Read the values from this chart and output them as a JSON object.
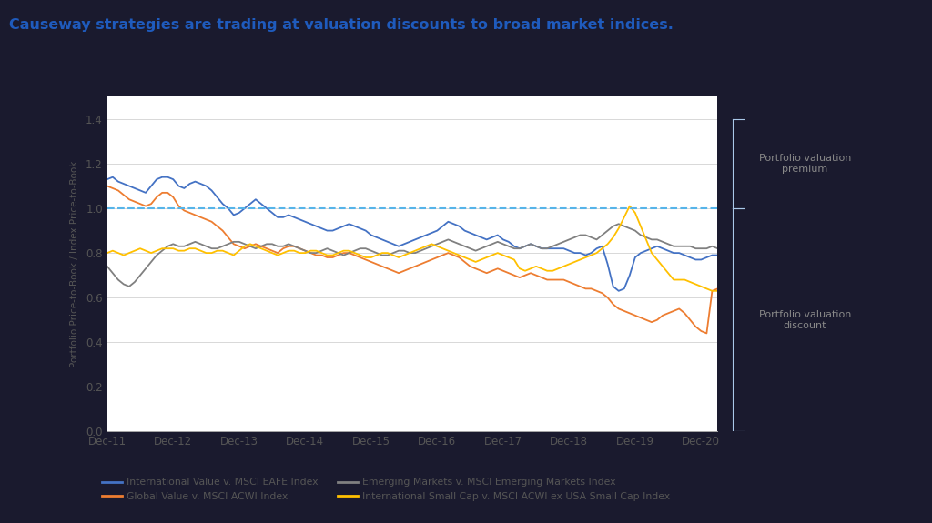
{
  "title": "Causeway strategies are trading at valuation discounts to broad market indices.",
  "title_color": "#1f5bbd",
  "title_bar_color": "#1a1a2e",
  "ylabel": "Portfolio Price-to-Book / Index Price-to-Book",
  "background_color": "#ffffff",
  "chart_bg": "#ffffff",
  "outer_bg": "#1a1a2e",
  "ylim": [
    0,
    1.5
  ],
  "yticks": [
    0,
    0.2,
    0.4,
    0.6,
    0.8,
    1.0,
    1.2,
    1.4
  ],
  "xtick_labels": [
    "Dec-11",
    "Dec-12",
    "Dec-13",
    "Dec-14",
    "Dec-15",
    "Dec-16",
    "Dec-17",
    "Dec-18",
    "Dec-19",
    "Dec-20"
  ],
  "annotation_premium": "Portfolio valuation\npremium",
  "annotation_discount": "Portfolio valuation\ndiscount",
  "annotation_color": "#888888",
  "dashed_line_y": 1.0,
  "dashed_color": "#56b4e9",
  "bracket_color": "#aac8e8",
  "series_order": [
    "international_value",
    "global_value",
    "emerging_markets",
    "intl_small_cap"
  ],
  "series": {
    "international_value": {
      "label": "International Value v. MSCI EAFE Index",
      "color": "#4472c4",
      "data": [
        1.13,
        1.14,
        1.12,
        1.11,
        1.1,
        1.09,
        1.08,
        1.07,
        1.1,
        1.13,
        1.14,
        1.14,
        1.13,
        1.1,
        1.09,
        1.11,
        1.12,
        1.11,
        1.1,
        1.08,
        1.05,
        1.02,
        1.0,
        0.97,
        0.98,
        1.0,
        1.02,
        1.04,
        1.02,
        1.0,
        0.98,
        0.96,
        0.96,
        0.97,
        0.96,
        0.95,
        0.94,
        0.93,
        0.92,
        0.91,
        0.9,
        0.9,
        0.91,
        0.92,
        0.93,
        0.92,
        0.91,
        0.9,
        0.88,
        0.87,
        0.86,
        0.85,
        0.84,
        0.83,
        0.84,
        0.85,
        0.86,
        0.87,
        0.88,
        0.89,
        0.9,
        0.92,
        0.94,
        0.93,
        0.92,
        0.9,
        0.89,
        0.88,
        0.87,
        0.86,
        0.87,
        0.88,
        0.86,
        0.85,
        0.83,
        0.82,
        0.83,
        0.84,
        0.83,
        0.82,
        0.82,
        0.82,
        0.82,
        0.82,
        0.81,
        0.8,
        0.8,
        0.79,
        0.8,
        0.82,
        0.83,
        0.75,
        0.65,
        0.63,
        0.64,
        0.7,
        0.78,
        0.8,
        0.81,
        0.82,
        0.83,
        0.82,
        0.81,
        0.8,
        0.8,
        0.79,
        0.78,
        0.77,
        0.77,
        0.78,
        0.79,
        0.79
      ]
    },
    "global_value": {
      "label": "Global Value v. MSCI ACWI Index",
      "color": "#ed7d31",
      "data": [
        1.1,
        1.09,
        1.08,
        1.06,
        1.04,
        1.03,
        1.02,
        1.01,
        1.02,
        1.05,
        1.07,
        1.07,
        1.05,
        1.01,
        0.99,
        0.98,
        0.97,
        0.96,
        0.95,
        0.94,
        0.92,
        0.9,
        0.87,
        0.84,
        0.83,
        0.82,
        0.83,
        0.84,
        0.83,
        0.82,
        0.81,
        0.8,
        0.82,
        0.83,
        0.83,
        0.82,
        0.81,
        0.8,
        0.79,
        0.79,
        0.78,
        0.78,
        0.79,
        0.8,
        0.8,
        0.79,
        0.78,
        0.77,
        0.76,
        0.75,
        0.74,
        0.73,
        0.72,
        0.71,
        0.72,
        0.73,
        0.74,
        0.75,
        0.76,
        0.77,
        0.78,
        0.79,
        0.8,
        0.79,
        0.78,
        0.76,
        0.74,
        0.73,
        0.72,
        0.71,
        0.72,
        0.73,
        0.72,
        0.71,
        0.7,
        0.69,
        0.7,
        0.71,
        0.7,
        0.69,
        0.68,
        0.68,
        0.68,
        0.68,
        0.67,
        0.66,
        0.65,
        0.64,
        0.64,
        0.63,
        0.62,
        0.6,
        0.57,
        0.55,
        0.54,
        0.53,
        0.52,
        0.51,
        0.5,
        0.49,
        0.5,
        0.52,
        0.53,
        0.54,
        0.55,
        0.53,
        0.5,
        0.47,
        0.45,
        0.44,
        0.63,
        0.64
      ]
    },
    "emerging_markets": {
      "label": "Emerging Markets v. MSCI Emerging Markets Index",
      "color": "#808080",
      "data": [
        0.74,
        0.71,
        0.68,
        0.66,
        0.65,
        0.67,
        0.7,
        0.73,
        0.76,
        0.79,
        0.81,
        0.83,
        0.84,
        0.83,
        0.83,
        0.84,
        0.85,
        0.84,
        0.83,
        0.82,
        0.82,
        0.83,
        0.84,
        0.85,
        0.85,
        0.84,
        0.83,
        0.82,
        0.83,
        0.84,
        0.84,
        0.83,
        0.83,
        0.84,
        0.83,
        0.82,
        0.81,
        0.8,
        0.8,
        0.81,
        0.82,
        0.81,
        0.8,
        0.79,
        0.8,
        0.81,
        0.82,
        0.82,
        0.81,
        0.8,
        0.79,
        0.79,
        0.8,
        0.81,
        0.81,
        0.8,
        0.8,
        0.81,
        0.82,
        0.83,
        0.84,
        0.85,
        0.86,
        0.85,
        0.84,
        0.83,
        0.82,
        0.81,
        0.82,
        0.83,
        0.84,
        0.85,
        0.84,
        0.83,
        0.82,
        0.82,
        0.83,
        0.84,
        0.83,
        0.82,
        0.82,
        0.83,
        0.84,
        0.85,
        0.86,
        0.87,
        0.88,
        0.88,
        0.87,
        0.86,
        0.88,
        0.9,
        0.92,
        0.93,
        0.92,
        0.91,
        0.9,
        0.88,
        0.87,
        0.86,
        0.86,
        0.85,
        0.84,
        0.83,
        0.83,
        0.83,
        0.83,
        0.82,
        0.82,
        0.82,
        0.83,
        0.82
      ]
    },
    "intl_small_cap": {
      "label": "International Small Cap v. MSCI ACWI ex USA Small Cap Index",
      "color": "#ffc000",
      "data": [
        0.8,
        0.81,
        0.8,
        0.79,
        0.8,
        0.81,
        0.82,
        0.81,
        0.8,
        0.81,
        0.82,
        0.82,
        0.82,
        0.81,
        0.81,
        0.82,
        0.82,
        0.81,
        0.8,
        0.8,
        0.81,
        0.81,
        0.8,
        0.79,
        0.81,
        0.83,
        0.84,
        0.83,
        0.82,
        0.81,
        0.8,
        0.79,
        0.8,
        0.81,
        0.81,
        0.8,
        0.8,
        0.81,
        0.81,
        0.8,
        0.79,
        0.79,
        0.8,
        0.81,
        0.81,
        0.8,
        0.79,
        0.78,
        0.78,
        0.79,
        0.8,
        0.8,
        0.79,
        0.78,
        0.79,
        0.8,
        0.81,
        0.82,
        0.83,
        0.84,
        0.83,
        0.82,
        0.81,
        0.8,
        0.79,
        0.78,
        0.77,
        0.76,
        0.77,
        0.78,
        0.79,
        0.8,
        0.79,
        0.78,
        0.77,
        0.73,
        0.72,
        0.73,
        0.74,
        0.73,
        0.72,
        0.72,
        0.73,
        0.74,
        0.75,
        0.76,
        0.77,
        0.78,
        0.79,
        0.8,
        0.82,
        0.84,
        0.87,
        0.91,
        0.96,
        1.01,
        0.98,
        0.92,
        0.86,
        0.8,
        0.77,
        0.74,
        0.71,
        0.68,
        0.68,
        0.68,
        0.67,
        0.66,
        0.65,
        0.64,
        0.63,
        0.63
      ]
    }
  }
}
